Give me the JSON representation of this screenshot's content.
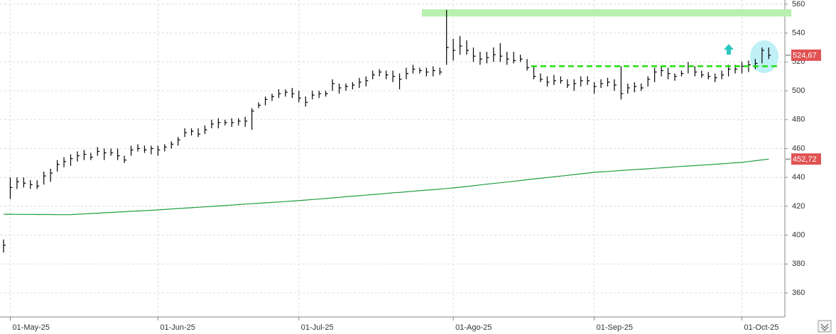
{
  "chart_data": {
    "type": "ohlc",
    "categories": [
      null,
      "01-May-25",
      null,
      null,
      null,
      null,
      null,
      null,
      null,
      null,
      null,
      null,
      null,
      null,
      null,
      null,
      null,
      null,
      null,
      null,
      null,
      null,
      null,
      "01-Jun-25",
      null,
      null,
      null,
      null,
      null,
      null,
      null,
      null,
      null,
      null,
      null,
      null,
      null,
      null,
      null,
      null,
      null,
      null,
      null,
      null,
      "01-Jul-25",
      null,
      null,
      null,
      null,
      null,
      null,
      null,
      null,
      null,
      null,
      null,
      null,
      null,
      null,
      null,
      null,
      null,
      null,
      null,
      null,
      null,
      null,
      "01-Ago-25",
      null,
      null,
      null,
      null,
      null,
      null,
      null,
      null,
      null,
      null,
      null,
      null,
      null,
      null,
      null,
      null,
      null,
      null,
      null,
      null,
      "01-Sep-25",
      null,
      null,
      null,
      null,
      null,
      null,
      null,
      null,
      null,
      null,
      null,
      null,
      null,
      null,
      null,
      null,
      null,
      null,
      null,
      null,
      null,
      "01-Oct-25",
      null,
      null,
      null,
      null
    ],
    "bars": {
      "color": "#000000",
      "low": [
        388,
        425,
        432,
        433,
        432,
        432,
        435,
        437,
        444,
        447,
        448,
        451,
        452,
        452,
        455,
        452,
        455,
        452,
        450,
        455,
        458,
        457,
        456,
        455,
        458,
        460,
        462,
        468,
        469,
        468,
        470,
        474,
        474,
        476,
        475,
        476,
        475,
        473,
        488,
        490,
        493,
        495,
        496,
        495,
        492,
        489,
        494,
        495,
        496,
        500,
        498,
        500,
        501,
        502,
        503,
        508,
        510,
        508,
        506,
        501,
        508,
        512,
        512,
        510,
        510,
        511,
        518,
        521,
        525,
        525,
        520,
        518,
        519,
        520,
        520,
        518,
        519,
        520,
        514,
        508,
        506,
        503,
        504,
        505,
        502,
        500,
        503,
        504,
        498,
        502,
        503,
        500,
        494,
        498,
        499,
        500,
        503,
        506,
        510,
        508,
        507,
        510,
        512,
        510,
        509,
        508,
        506,
        508,
        510,
        512,
        512,
        513,
        515,
        519,
        522
      ],
      "high": [
        397,
        440,
        440,
        440,
        438,
        438,
        444,
        446,
        452,
        454,
        456,
        458,
        459,
        457,
        461,
        460,
        460,
        460,
        455,
        462,
        463,
        462,
        462,
        462,
        463,
        465,
        468,
        474,
        474,
        474,
        476,
        480,
        481,
        480,
        481,
        481,
        482,
        488,
        492,
        496,
        498,
        501,
        501,
        502,
        500,
        496,
        500,
        500,
        500,
        508,
        505,
        505,
        506,
        509,
        510,
        514,
        515,
        514,
        514,
        512,
        516,
        518,
        516,
        516,
        517,
        516,
        556,
        536,
        538,
        535,
        530,
        527,
        527,
        530,
        533,
        527,
        527,
        525,
        522,
        517,
        512,
        510,
        511,
        510,
        508,
        508,
        510,
        510,
        506,
        508,
        509,
        508,
        517,
        505,
        506,
        505,
        510,
        516,
        517,
        516,
        512,
        514,
        520,
        517,
        514,
        513,
        512,
        514,
        518,
        518,
        520,
        521,
        522,
        530,
        530
      ],
      "close": [
        393,
        433,
        437,
        436,
        435,
        434,
        441,
        443,
        449,
        451,
        453,
        455,
        456,
        454,
        458,
        457,
        457,
        455,
        452,
        459,
        460,
        459,
        460,
        459,
        461,
        463,
        466,
        471,
        472,
        470,
        473,
        477,
        478,
        478,
        478,
        479,
        479,
        486,
        490,
        494,
        496,
        498,
        499,
        498,
        495,
        492,
        497,
        498,
        498,
        505,
        502,
        503,
        504,
        506,
        507,
        511,
        513,
        511,
        510,
        508,
        512,
        515,
        514,
        513,
        514,
        513,
        530,
        528,
        531,
        528,
        524,
        522,
        523,
        525,
        524,
        522,
        521,
        522,
        516,
        510,
        508,
        506,
        507,
        507,
        504,
        505,
        507,
        507,
        503,
        505,
        506,
        504,
        498,
        502,
        503,
        502,
        508,
        513,
        514,
        512,
        510,
        512,
        517,
        513,
        511,
        510,
        509,
        511,
        515,
        515,
        517,
        518,
        519,
        528,
        524.67
      ],
      "last_label": "524,67",
      "label_color": "#e05252"
    },
    "average": {
      "color": "#1f9e3e",
      "values": [
        414.5,
        414.5,
        414.4,
        414.4,
        414.4,
        414.3,
        414.3,
        414.3,
        414.2,
        414.2,
        414.2,
        414.5,
        414.7,
        415.0,
        415.2,
        415.5,
        415.7,
        416.0,
        416.2,
        416.5,
        416.7,
        417.0,
        417.2,
        417.5,
        417.8,
        418.1,
        418.4,
        418.7,
        419.0,
        419.3,
        419.6,
        419.9,
        420.2,
        420.5,
        420.8,
        421.2,
        421.5,
        421.8,
        422.1,
        422.4,
        422.7,
        423.0,
        423.3,
        423.6,
        423.9,
        424.3,
        424.7,
        425.0,
        425.4,
        425.8,
        426.2,
        426.6,
        427.0,
        427.3,
        427.7,
        428.1,
        428.5,
        428.9,
        429.3,
        429.6,
        430.0,
        430.4,
        430.8,
        431.2,
        431.5,
        431.9,
        432.3,
        432.7,
        433.2,
        433.7,
        434.2,
        434.8,
        435.3,
        435.8,
        436.3,
        436.8,
        437.3,
        437.8,
        438.4,
        438.9,
        439.4,
        439.9,
        440.4,
        440.9,
        441.4,
        442.0,
        442.5,
        443.0,
        443.5,
        443.8,
        444.1,
        444.4,
        444.8,
        445.1,
        445.4,
        445.7,
        446.0,
        446.3,
        446.6,
        446.9,
        447.3,
        447.6,
        447.9,
        448.2,
        448.5,
        448.8,
        449.1,
        449.4,
        449.8,
        450.1,
        450.4,
        451.0,
        451.6,
        452.1,
        452.72
      ],
      "last_label": "452,72",
      "label_color": "#e05252"
    },
    "zone": [
      551.5,
      556.5
    ],
    "zone_color": "#b8f0b0",
    "level": 517,
    "level_color": "#22dd11",
    "ylim": [
      343.3,
      562.9
    ],
    "yticks": [
      360,
      380,
      400,
      420,
      440,
      460,
      480,
      500,
      520,
      540,
      560
    ],
    "grid": true
  }
}
